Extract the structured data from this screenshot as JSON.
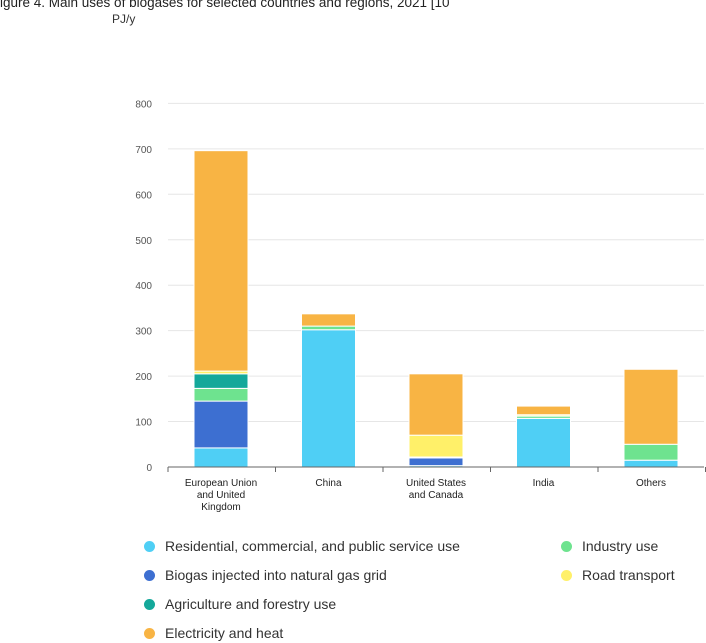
{
  "caption": "igure 4. Main uses of biogases for selected countries and regions, 2021 [10",
  "chart_data": {
    "type": "bar",
    "stacked": true,
    "ylabel": "PJ/y",
    "ylim": [
      0,
      800
    ],
    "yticks": [
      0,
      100,
      200,
      300,
      400,
      500,
      600,
      700,
      800
    ],
    "grid": true,
    "legend_position": "bottom",
    "categories": [
      "European Union and United Kingdom",
      "China",
      "United States and Canada",
      "India",
      "Others"
    ],
    "category_lines": [
      [
        "European Union",
        "and United",
        "Kingdom"
      ],
      [
        "China"
      ],
      [
        "United States",
        "and Canada"
      ],
      [
        "India"
      ],
      [
        "Others"
      ]
    ],
    "series": [
      {
        "name": "Residential, commercial, and public service use",
        "color": "#4fcff5",
        "values": [
          42,
          302,
          3,
          107,
          15
        ]
      },
      {
        "name": "Biogas injected into natural gas grid",
        "color": "#3d6fd1",
        "values": [
          103,
          0,
          17,
          0,
          0
        ]
      },
      {
        "name": "Industry use",
        "color": "#6ee38f",
        "values": [
          28,
          8,
          2,
          5,
          35
        ]
      },
      {
        "name": "Agriculture and forestry use",
        "color": "#14a89a",
        "values": [
          32,
          0,
          0,
          0,
          0
        ]
      },
      {
        "name": "Road transport",
        "color": "#fff069",
        "values": [
          6,
          0,
          48,
          3,
          0
        ]
      },
      {
        "name": "Electricity and heat",
        "color": "#f8b444",
        "values": [
          485,
          27,
          135,
          19,
          165
        ]
      }
    ]
  },
  "legend": [
    {
      "label": "Residential, commercial, and public service use",
      "color": "#4fcff5"
    },
    {
      "label": "Industry use",
      "color": "#6ee38f"
    },
    {
      "label": "Biogas injected into natural gas grid",
      "color": "#3d6fd1"
    },
    {
      "label": "Road transport",
      "color": "#fff069"
    },
    {
      "label": "Agriculture and forestry use",
      "color": "#14a89a"
    },
    {
      "label": "Electricity and heat",
      "color": "#f8b444"
    }
  ]
}
